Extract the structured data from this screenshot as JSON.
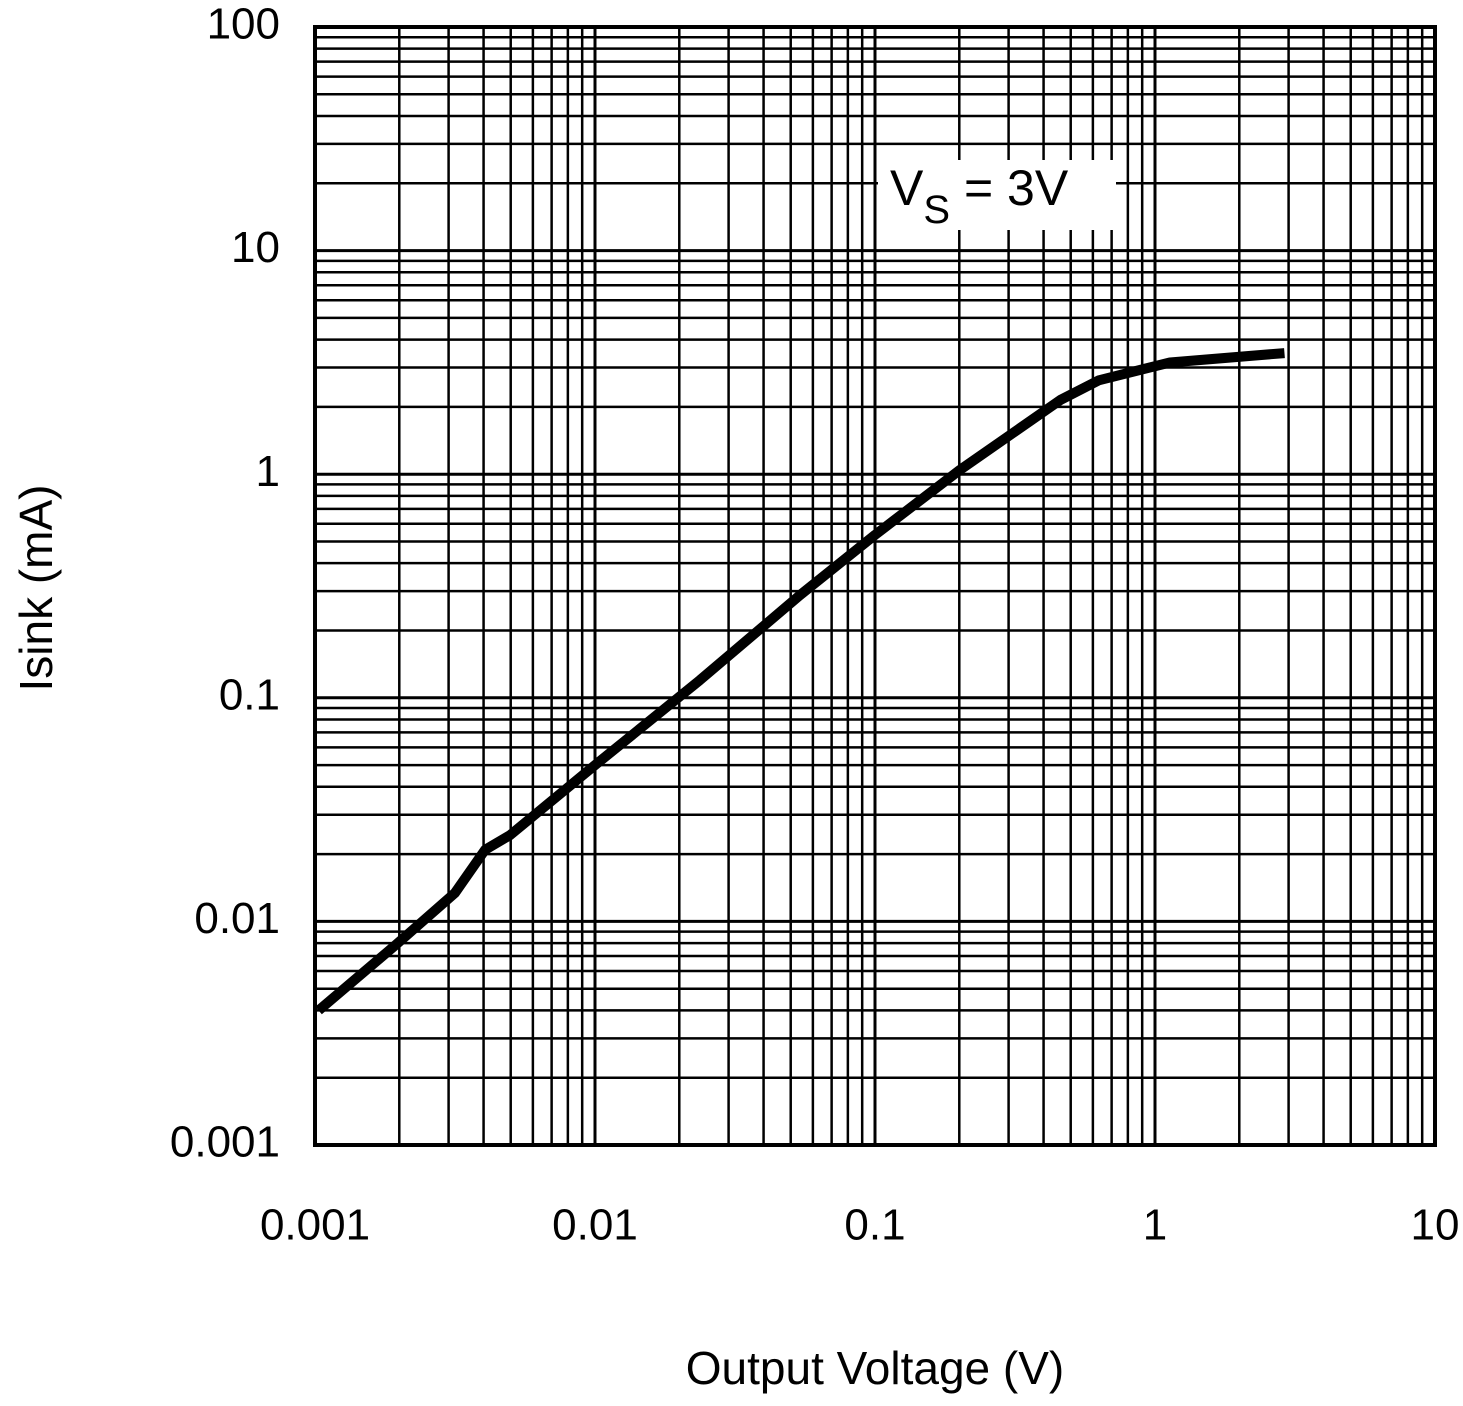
{
  "chart_data": {
    "type": "line",
    "x_label": "Output Voltage (V)",
    "y_label": "Isink (mA)",
    "annotation": [
      "V",
      "S",
      " = 3V"
    ],
    "xscale": "log",
    "yscale": "log",
    "grid": true,
    "minor_grid": true,
    "xlim": [
      0.001,
      10
    ],
    "ylim": [
      0.001,
      100
    ],
    "xticks": [
      0.001,
      0.01,
      0.1,
      1,
      10
    ],
    "yticks": [
      0.001,
      0.01,
      0.1,
      1,
      10,
      100
    ],
    "x": [
      0.00103,
      0.00193,
      0.00316,
      0.00405,
      0.00497,
      0.01,
      0.0237,
      0.054,
      0.1,
      0.2,
      0.46,
      0.63,
      1.13,
      2.9
    ],
    "series": [
      {
        "color": "#000000",
        "values": [
          0.004,
          0.0078,
          0.0134,
          0.0209,
          0.0243,
          0.05,
          0.12,
          0.288,
          0.535,
          1.04,
          2.15,
          2.63,
          3.16,
          3.48
        ]
      }
    ]
  }
}
